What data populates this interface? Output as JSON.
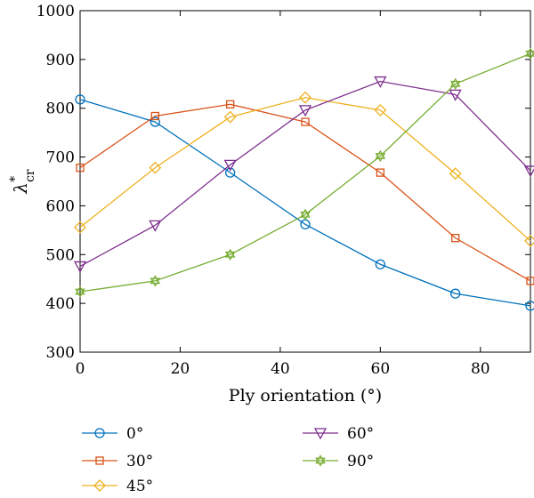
{
  "chart_data": {
    "type": "line",
    "title": "",
    "xlabel": "Ply orientation (°)",
    "ylabel_main": "λ",
    "ylabel_sup": "*",
    "ylabel_sub": "cr",
    "xlim": [
      0,
      90
    ],
    "ylim": [
      300,
      1000
    ],
    "xticks": [
      0,
      20,
      40,
      60,
      80
    ],
    "yticks": [
      300,
      400,
      500,
      600,
      700,
      800,
      900,
      1000
    ],
    "grid": false,
    "legend_position": "bottom",
    "x": [
      0,
      15,
      30,
      45,
      60,
      75,
      90
    ],
    "series": [
      {
        "name": "0°",
        "color": "#0072BD",
        "marker": "circle",
        "values": [
          818,
          772,
          668,
          562,
          480,
          420,
          395
        ]
      },
      {
        "name": "30°",
        "color": "#D95319",
        "marker": "square",
        "values": [
          678,
          784,
          808,
          772,
          668,
          534,
          446
        ]
      },
      {
        "name": "45°",
        "color": "#EDB120",
        "marker": "diamond",
        "values": [
          556,
          678,
          782,
          822,
          796,
          666,
          528
        ]
      },
      {
        "name": "60°",
        "color": "#7E2F8E",
        "marker": "triangle-down",
        "values": [
          476,
          560,
          684,
          796,
          855,
          828,
          672
        ]
      },
      {
        "name": "90°",
        "color": "#77AC30",
        "marker": "hexagram",
        "values": [
          424,
          446,
          500,
          582,
          702,
          850,
          912
        ]
      }
    ]
  }
}
